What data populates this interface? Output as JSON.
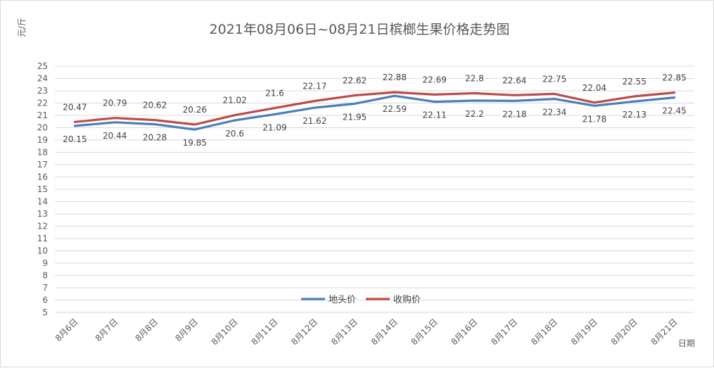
{
  "chart_data": {
    "type": "line",
    "title": "2021年08月06日~08月21日槟榔生果价格走势图",
    "ylabel": "元/斤",
    "xlabel": "日期",
    "categories": [
      "8月6日",
      "8月7日",
      "8月8日",
      "8月9日",
      "8月10日",
      "8月11日",
      "8月12日",
      "8月13日",
      "8月14日",
      "8月15日",
      "8月16日",
      "8月17日",
      "8月18日",
      "8月19日",
      "8月20日",
      "8月21日"
    ],
    "ylim": [
      5,
      25
    ],
    "yticks": [
      5,
      6,
      7,
      8,
      9,
      10,
      11,
      12,
      13,
      14,
      15,
      16,
      17,
      18,
      19,
      20,
      21,
      22,
      23,
      24,
      25
    ],
    "grid": true,
    "legend_position": "bottom-center",
    "series": [
      {
        "name": "地头价",
        "color": "#4a7ebb",
        "values": [
          20.15,
          20.44,
          20.28,
          19.85,
          20.6,
          21.09,
          21.62,
          21.95,
          22.59,
          22.11,
          22.2,
          22.18,
          22.34,
          21.78,
          22.13,
          22.45
        ],
        "label_text": [
          "20.15",
          "20.44",
          "20.28",
          "19.85",
          "20.6",
          "21.09",
          "21.62",
          "21.95",
          "22.59",
          "22.11",
          "22.2",
          "22.18",
          "22.34",
          "21.78",
          "22.13",
          "22.45"
        ]
      },
      {
        "name": "收购价",
        "color": "#be4b48",
        "values": [
          20.47,
          20.79,
          20.62,
          20.26,
          21.02,
          21.6,
          22.17,
          22.62,
          22.88,
          22.69,
          22.8,
          22.64,
          22.75,
          22.04,
          22.55,
          22.85
        ],
        "label_text": [
          "20.47",
          "20.79",
          "20.62",
          "20.26",
          "21.02",
          "21.6",
          "22.17",
          "22.62",
          "22.88",
          "22.69",
          "22.8",
          "22.64",
          "22.75",
          "22.04",
          "22.55",
          "22.85"
        ]
      }
    ]
  }
}
